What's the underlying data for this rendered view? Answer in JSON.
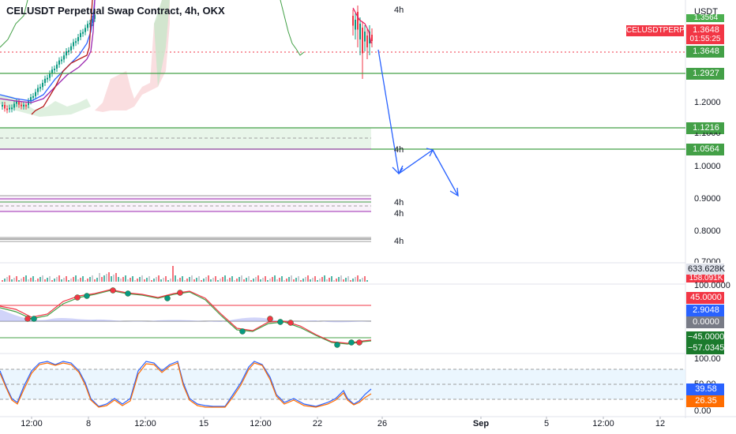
{
  "title": "CELUSDT Perpetual Swap Contract, 4h, OKX",
  "currency": "USDT",
  "symbol_tag": "CELUSDTPERP",
  "countdown": "01:55:25",
  "price_badges": {
    "top_partial": "1.3564",
    "current": "1.3648",
    "current_tag": "1.3648",
    "level_1": "1.2927",
    "level_2": "1.1216",
    "level_3": "1.0564"
  },
  "price_axis": [
    "1.2000",
    "1.1000",
    "1.0000",
    "0.9000",
    "0.8000",
    "0.7000"
  ],
  "timeframe_labels": [
    "4h",
    "4h",
    "4h",
    "4h",
    "4h"
  ],
  "volume": {
    "value": "633.628K",
    "ma": "158.091K"
  },
  "cci": {
    "top": "100.0000",
    "upper": "45.0000",
    "value": "2.9048",
    "zero": "0.0000",
    "lower": "−45.0000",
    "bottom": "−57.0345"
  },
  "stoch": {
    "top": "100.00",
    "k": "39.58",
    "d": "26.35",
    "mid": "50.00",
    "bottom": "0.00"
  },
  "x_axis": [
    "12:00",
    "8",
    "12:00",
    "15",
    "12:00",
    "22",
    "26",
    "Sep",
    "5",
    "12:00",
    "12"
  ],
  "colors": {
    "green": "#089981",
    "red": "#f23645",
    "level_line": "#43a047",
    "arrow": "#2962ff",
    "cci_value": "#2962ff"
  }
}
